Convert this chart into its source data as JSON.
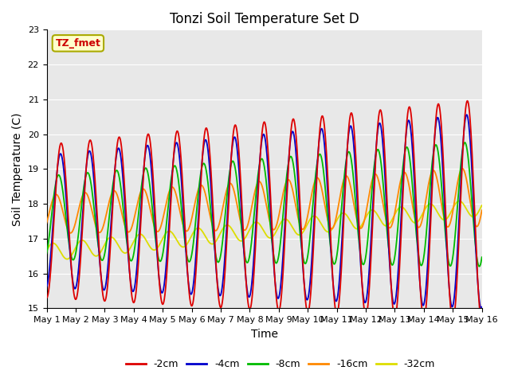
{
  "title": "Tonzi Soil Temperature Set D",
  "xlabel": "Time",
  "ylabel": "Soil Temperature (C)",
  "ylim": [
    15.0,
    23.0
  ],
  "yticks": [
    15.0,
    16.0,
    17.0,
    18.0,
    19.0,
    20.0,
    21.0,
    22.0,
    23.0
  ],
  "x_tick_labels": [
    "May 1",
    "May 2",
    "May 3",
    "May 4",
    "May 5",
    "May 6",
    "May 7",
    "May 8",
    "May 9",
    "May 10",
    "May 11",
    "May 12",
    "May 13",
    "May 14",
    "May 15",
    "May 16"
  ],
  "colors": {
    "-2cm": "#dd0000",
    "-4cm": "#0000cc",
    "-8cm": "#00bb00",
    "-16cm": "#ff8800",
    "-32cm": "#dddd00"
  },
  "legend_labels": [
    "-2cm",
    "-4cm",
    "-8cm",
    "-16cm",
    "-32cm"
  ],
  "annotation_text": "TZ_fmet",
  "annotation_color": "#cc0000",
  "annotation_box_color": "#ffffcc",
  "background_color": "#e8e8e8",
  "fig_background": "#ffffff",
  "title_fontsize": 12,
  "axis_label_fontsize": 10,
  "tick_fontsize": 8
}
